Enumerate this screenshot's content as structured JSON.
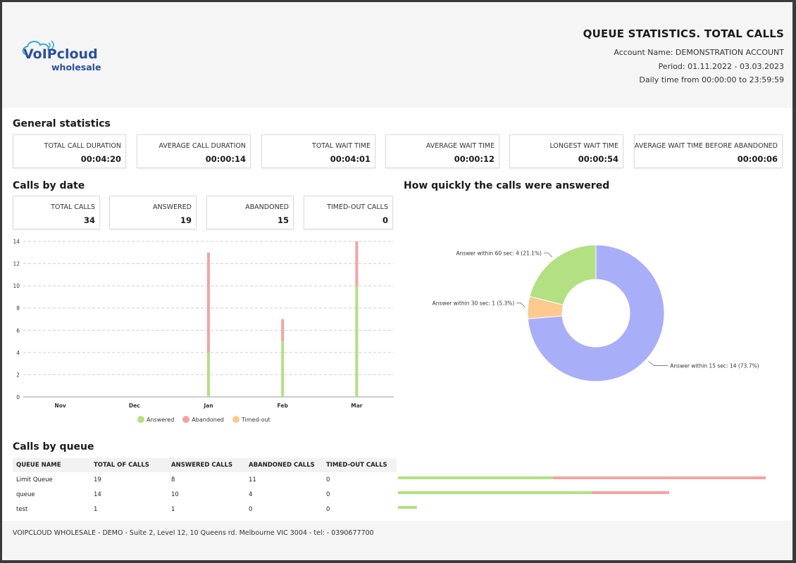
{
  "header": {
    "logo_text_top": "VoIPcloud",
    "logo_text_bottom": "wholesale",
    "title": "QUEUE STATISTICS. TOTAL CALLS",
    "account": "Account Name: DEMONSTRATION ACCOUNT",
    "period": "Period: 01.11.2022 - 03.03.2023",
    "daily_time": "Daily time from 00:00:00 to 23:59:59"
  },
  "general": {
    "title": "General statistics",
    "cards": [
      {
        "label": "TOTAL CALL DURATION",
        "value": "00:04:20"
      },
      {
        "label": "AVERAGE CALL DURATION",
        "value": "00:00:14"
      },
      {
        "label": "TOTAL WAIT TIME",
        "value": "00:04:01"
      },
      {
        "label": "AVERAGE WAIT TIME",
        "value": "00:00:12"
      },
      {
        "label": "LONGEST WAIT TIME",
        "value": "00:00:54"
      },
      {
        "label": "AVERAGE WAIT TIME BEFORE ABANDONED",
        "value": "00:00:06"
      }
    ]
  },
  "by_date": {
    "title": "Calls by date",
    "cards": [
      {
        "label": "TOTAL CALLS",
        "value": "34"
      },
      {
        "label": "ANSWERED",
        "value": "19"
      },
      {
        "label": "ABANDONED",
        "value": "15"
      },
      {
        "label": "TIMED-OUT CALLS",
        "value": "0"
      }
    ]
  },
  "quick": {
    "title": "How quickly the calls were answered"
  },
  "legend": {
    "answered": "Answered",
    "abandoned": "Abandoned",
    "timed_out": "Timed-out"
  },
  "colors": {
    "answered": "#b2e082",
    "abandoned": "#f4a3a3",
    "timed_out": "#fcc98e",
    "within15": "#a8aef8",
    "within30": "#fcc98e",
    "within60": "#b2e082"
  },
  "chart_data": [
    {
      "type": "bar",
      "stacked": true,
      "categories": [
        "Nov",
        "Dec",
        "Jan",
        "Feb",
        "Mar"
      ],
      "series": [
        {
          "name": "Answered",
          "values": [
            0,
            0,
            4,
            5,
            10
          ]
        },
        {
          "name": "Abandoned",
          "values": [
            0,
            0,
            9,
            2,
            4
          ]
        },
        {
          "name": "Timed-out",
          "values": [
            0,
            0,
            0,
            0,
            0
          ]
        }
      ],
      "yticks": [
        "0",
        "2",
        "4",
        "6",
        "8",
        "10",
        "12",
        "14"
      ],
      "ylim": [
        0,
        14
      ],
      "grid": true,
      "legend": "bottom"
    },
    {
      "type": "pie",
      "donut": true,
      "slices": [
        {
          "label": "Answer within 15 sec: 14 (73.7%)",
          "value": 14
        },
        {
          "label": "Answer within 30 sec: 1 (5.3%)",
          "value": 1
        },
        {
          "label": "Answer within 60 sec: 4 (21.1%)",
          "value": 4
        }
      ]
    }
  ],
  "by_queue": {
    "title": "Calls by queue",
    "columns": [
      "QUEUE NAME",
      "TOTAL OF CALLS",
      "ANSWERED CALLS",
      "ABANDONED CALLS",
      "TIMED-OUT CALLS"
    ],
    "rows": [
      {
        "name": "Limit Queue",
        "total": "19",
        "answered": "8",
        "abandoned": "11",
        "timedout": "0"
      },
      {
        "name": "queue",
        "total": "14",
        "answered": "10",
        "abandoned": "4",
        "timedout": "0"
      },
      {
        "name": "test",
        "total": "1",
        "answered": "1",
        "abandoned": "0",
        "timedout": "0"
      }
    ]
  },
  "footer": {
    "text": "VOIPCLOUD WHOLESALE - DEMO - Suite 2, Level 12, 10 Queens rd. Melbourne VIC 3004 - tel: - 0390677700"
  }
}
